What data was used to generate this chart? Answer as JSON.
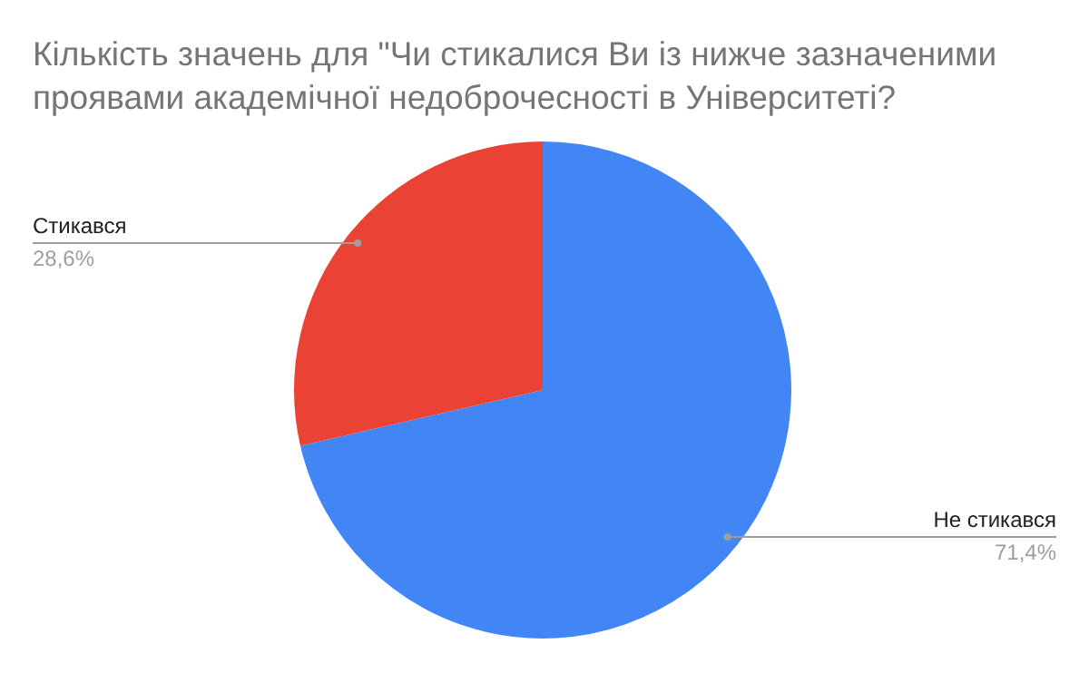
{
  "chart_data": {
    "type": "pie",
    "title": "Кількість значень для \"Чи стикалися Ви із нижче зазначеними проявами академічної недоброчесності в Університеті?",
    "categories": [
      "Не стикався",
      "Стикався"
    ],
    "values": [
      71.4,
      28.6
    ],
    "colors": [
      "#4285f4",
      "#ea4335"
    ],
    "value_labels": [
      "71,4%",
      "28,6%"
    ],
    "legend": false
  }
}
